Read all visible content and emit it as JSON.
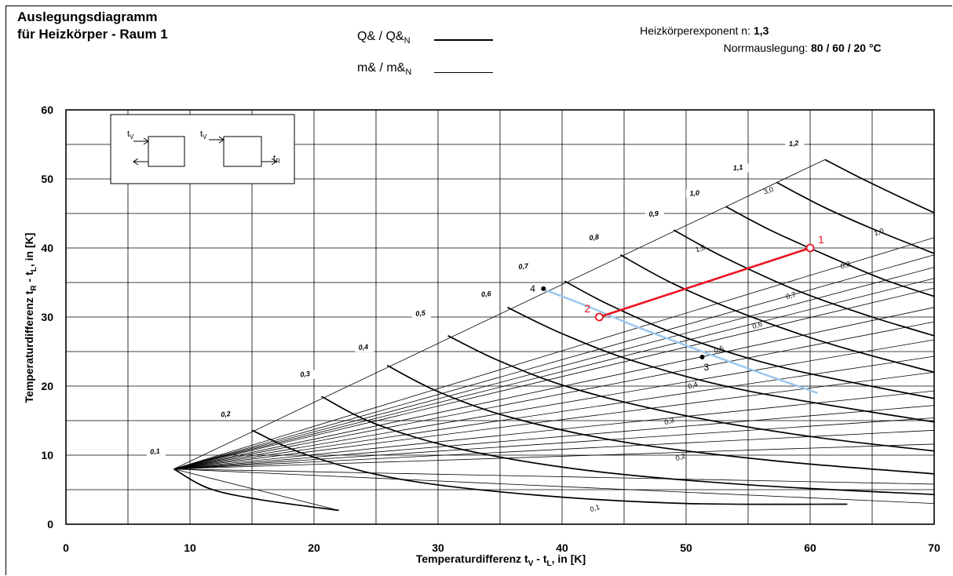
{
  "header": {
    "title_line1": "Auslegungsdiagramm",
    "title_line2": "für Heizkörper - Raum 1",
    "legend_q": "Q& / Q&",
    "legend_q_sub": "N",
    "legend_m": "m& / m&",
    "legend_m_sub": "N",
    "exponent_label": "Heizkörperexponent n:",
    "exponent_value": "1,3",
    "norm_label": "Norrmauslegung:",
    "norm_value": "80 / 60 / 20 °C"
  },
  "colors": {
    "grid": "#000000",
    "operating_line": "#e8141e",
    "room_curve": "#9cc8ee",
    "points": "#000000"
  },
  "chart_data": {
    "type": "line",
    "xlabel_main": "Temperaturdifferenz t",
    "xlabel_sub1": "V",
    "xlabel_mid": " - t",
    "xlabel_sub2": "L",
    "xlabel_end": ", in [K]",
    "ylabel_main": "Temperaturdifferenz t",
    "ylabel_sub1": "R",
    "ylabel_mid": " - t",
    "ylabel_sub2": "L",
    "ylabel_end": ", in [K]",
    "xlim": [
      0,
      70
    ],
    "ylim": [
      0,
      60
    ],
    "xticks": [
      0,
      10,
      20,
      30,
      40,
      50,
      60,
      70
    ],
    "yticks": [
      0,
      10,
      20,
      30,
      40,
      50,
      60
    ],
    "grid": true,
    "inset_labels": {
      "tv1": "t",
      "tv1_sub": "V",
      "tv2": "t",
      "tv2_sub": "V",
      "tr": "t",
      "tr_sub": "R"
    },
    "q_labels": [
      {
        "text": "0,1",
        "x": 7.2,
        "y": 10.2
      },
      {
        "text": "0,2",
        "x": 12.9,
        "y": 15.6
      },
      {
        "text": "0,3",
        "x": 19.3,
        "y": 21.4
      },
      {
        "text": "0,4",
        "x": 24.0,
        "y": 25.3
      },
      {
        "text": "0,5",
        "x": 28.6,
        "y": 30.2
      },
      {
        "text": "0,6",
        "x": 33.9,
        "y": 33.0
      },
      {
        "text": "0,7",
        "x": 36.9,
        "y": 37.0
      },
      {
        "text": "0,8",
        "x": 42.6,
        "y": 41.2
      },
      {
        "text": "0,9",
        "x": 47.4,
        "y": 44.6
      },
      {
        "text": "1,0",
        "x": 50.7,
        "y": 47.6
      },
      {
        "text": "1,1",
        "x": 54.2,
        "y": 51.3
      },
      {
        "text": "1,2",
        "x": 58.7,
        "y": 54.8
      }
    ],
    "m_labels": [
      {
        "text": "0,1",
        "x": 42.7,
        "y": 2.0
      },
      {
        "text": "0,2",
        "x": 49.6,
        "y": 9.4
      },
      {
        "text": "0,3",
        "x": 48.7,
        "y": 14.6
      },
      {
        "text": "0,4",
        "x": 50.6,
        "y": 19.8
      },
      {
        "text": "0,5",
        "x": 52.7,
        "y": 25.0
      },
      {
        "text": "0,6",
        "x": 55.8,
        "y": 28.5
      },
      {
        "text": "0,7",
        "x": 58.5,
        "y": 32.8
      },
      {
        "text": "0,8",
        "x": 62.9,
        "y": 37.2
      },
      {
        "text": "1,0",
        "x": 65.6,
        "y": 42.0
      },
      {
        "text": "1,5",
        "x": 51.2,
        "y": 39.6
      },
      {
        "text": "3,0",
        "x": 56.7,
        "y": 48.0
      }
    ],
    "q_curves": [
      {
        "name": "0,1",
        "points": [
          [
            8.7,
            8.0
          ],
          [
            11.5,
            5.2
          ],
          [
            15.5,
            3.6
          ],
          [
            22,
            2.0
          ]
        ]
      },
      {
        "name": "0,2",
        "points": [
          [
            15.0,
            13.6
          ],
          [
            19.5,
            10.0
          ],
          [
            27,
            6.5
          ],
          [
            38,
            4.2
          ],
          [
            50,
            3.0
          ],
          [
            63,
            2.9
          ]
        ]
      },
      {
        "name": "0,3",
        "points": [
          [
            20.6,
            18.5
          ],
          [
            25,
            14.5
          ],
          [
            32,
            10.8
          ],
          [
            42,
            7.8
          ],
          [
            55,
            5.7
          ],
          [
            70,
            4.3
          ]
        ]
      },
      {
        "name": "0,4",
        "points": [
          [
            25.9,
            23.0
          ],
          [
            30,
            19.2
          ],
          [
            36,
            15.4
          ],
          [
            45,
            11.9
          ],
          [
            57,
            9.2
          ],
          [
            70,
            7.3
          ]
        ]
      },
      {
        "name": "0,5",
        "points": [
          [
            30.8,
            27.3
          ],
          [
            35,
            23.6
          ],
          [
            41,
            19.6
          ],
          [
            50,
            15.7
          ],
          [
            60,
            12.7
          ],
          [
            70,
            10.6
          ]
        ]
      },
      {
        "name": "0,6",
        "points": [
          [
            35.6,
            31.4
          ],
          [
            40,
            27.6
          ],
          [
            46,
            23.5
          ],
          [
            55,
            19.3
          ],
          [
            70,
            14.8
          ]
        ]
      },
      {
        "name": "0,7",
        "points": [
          [
            40.2,
            35.2
          ],
          [
            44,
            31.6
          ],
          [
            50,
            27.0
          ],
          [
            58,
            22.6
          ],
          [
            70,
            18.2
          ]
        ]
      },
      {
        "name": "0,8",
        "points": [
          [
            44.7,
            39.0
          ],
          [
            49,
            34.8
          ],
          [
            55,
            30.2
          ],
          [
            62,
            25.9
          ],
          [
            70,
            22.0
          ]
        ]
      },
      {
        "name": "0,9",
        "points": [
          [
            49.0,
            42.6
          ],
          [
            53,
            38.7
          ],
          [
            59,
            33.8
          ],
          [
            65,
            30.0
          ],
          [
            70,
            27.3
          ]
        ]
      },
      {
        "name": "1,0",
        "points": [
          [
            53.2,
            46.0
          ],
          [
            57,
            42.4
          ],
          [
            62,
            38.4
          ],
          [
            66,
            35.4
          ],
          [
            70,
            33.0
          ]
        ]
      },
      {
        "name": "1,1",
        "points": [
          [
            57.3,
            49.5
          ],
          [
            61,
            46.0
          ],
          [
            65,
            42.8
          ],
          [
            70,
            39.2
          ]
        ]
      },
      {
        "name": "1,2",
        "points": [
          [
            61.2,
            52.8
          ],
          [
            64,
            50.2
          ],
          [
            67,
            47.6
          ],
          [
            70,
            45.1
          ]
        ]
      }
    ],
    "m_ray_ends": [
      [
        22,
        2.0
      ],
      [
        70,
        3.0
      ],
      [
        70,
        5.8
      ],
      [
        70,
        11.6
      ],
      [
        70,
        13.6
      ],
      [
        70,
        15.4
      ],
      [
        70,
        17.2
      ],
      [
        70,
        19.3
      ],
      [
        70,
        22.0
      ],
      [
        70,
        24.3
      ],
      [
        70,
        26.7
      ],
      [
        70,
        29.3
      ],
      [
        70,
        31.4
      ],
      [
        70,
        34.2
      ],
      [
        70,
        35.6
      ],
      [
        70,
        37.2
      ],
      [
        70,
        39.0
      ],
      [
        70,
        41.5
      ],
      [
        61.2,
        52.8
      ]
    ],
    "ray_origin": [
      8.7,
      8.0
    ],
    "room_curve": [
      [
        38.5,
        34.0
      ],
      [
        42,
        31.6
      ],
      [
        46,
        28.6
      ],
      [
        51,
        25.2
      ],
      [
        56,
        21.9
      ],
      [
        60.6,
        19.0
      ]
    ],
    "operating_line": {
      "point1": {
        "label": "1",
        "x": 60.0,
        "y": 40.0
      },
      "point2": {
        "label": "2",
        "x": 43.0,
        "y": 30.0
      }
    },
    "markers": [
      {
        "label": "3",
        "x": 51.3,
        "y": 24.2
      },
      {
        "label": "4",
        "x": 38.5,
        "y": 34.1
      }
    ]
  }
}
